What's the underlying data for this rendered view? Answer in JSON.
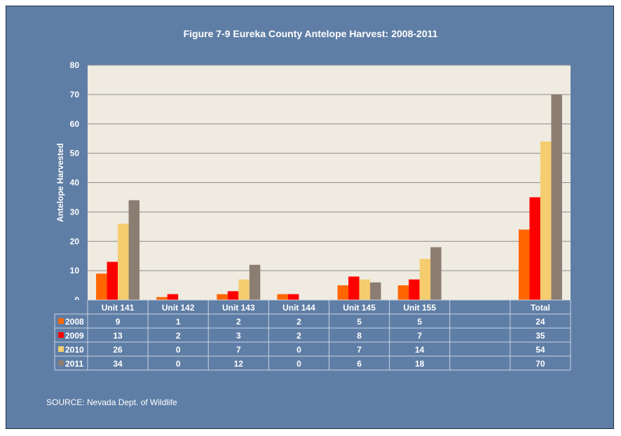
{
  "chart_data": {
    "type": "bar",
    "title": "Figure 7-9 Eureka County Antelope Harvest: 2008-2011",
    "ylabel": "Antelope Harvested",
    "xlabel": "",
    "ylim": [
      0,
      80
    ],
    "yticks": [
      0,
      10,
      20,
      30,
      40,
      50,
      60,
      70,
      80
    ],
    "grid": true,
    "legend": "data table rows",
    "categories": [
      "Unit 141",
      "Unit 142",
      "Unit 143",
      "Unit 144",
      "Unit 145",
      "Unit 155",
      "",
      "Total"
    ],
    "series": [
      {
        "name": "2008",
        "color": "#ff6600",
        "values": [
          9,
          1,
          2,
          2,
          5,
          5,
          null,
          24
        ]
      },
      {
        "name": "2009",
        "color": "#ff0000",
        "values": [
          13,
          2,
          3,
          2,
          8,
          7,
          null,
          35
        ]
      },
      {
        "name": "2010",
        "color": "#f5cd6e",
        "values": [
          26,
          0,
          7,
          0,
          7,
          14,
          null,
          54
        ]
      },
      {
        "name": "2011",
        "color": "#8c7d72",
        "values": [
          34,
          0,
          12,
          0,
          6,
          18,
          null,
          70
        ]
      }
    ],
    "plot_background": "#efebe1"
  },
  "source": "SOURCE: Nevada Dept. of Wildlife"
}
